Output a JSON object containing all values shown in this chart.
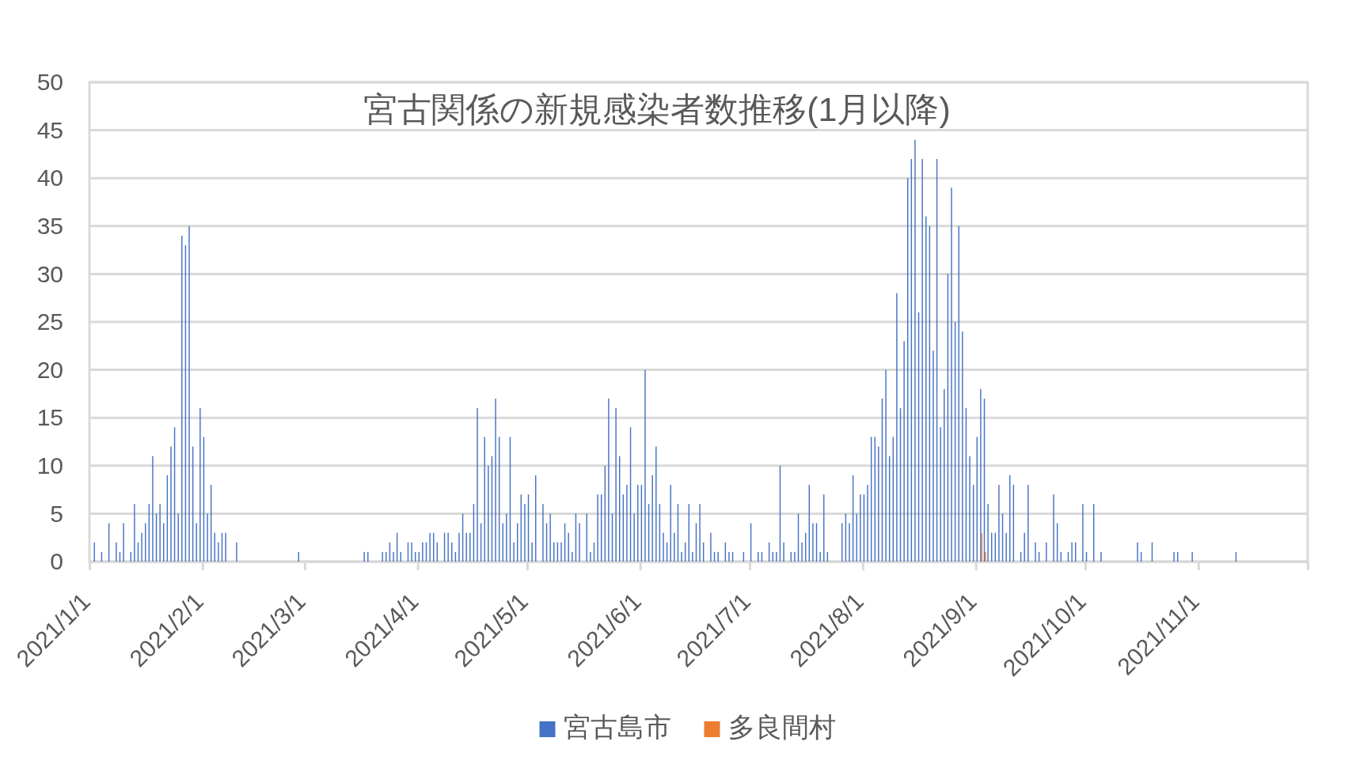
{
  "chart_data": {
    "type": "bar",
    "title": "宮古関係の新規感染者数推移(1月以降)",
    "xlim": [
      "2021-01-01",
      "2021-12-01"
    ],
    "xticks": [
      {
        "value": "2021-01-01",
        "label": "2021/1/1"
      },
      {
        "value": "2021-02-01",
        "label": "2021/2/1"
      },
      {
        "value": "2021-03-01",
        "label": "2021/3/1"
      },
      {
        "value": "2021-04-01",
        "label": "2021/4/1"
      },
      {
        "value": "2021-05-01",
        "label": "2021/5/1"
      },
      {
        "value": "2021-06-01",
        "label": "2021/6/1"
      },
      {
        "value": "2021-07-01",
        "label": "2021/7/1"
      },
      {
        "value": "2021-08-01",
        "label": "2021/8/1"
      },
      {
        "value": "2021-09-01",
        "label": "2021/9/1"
      },
      {
        "value": "2021-10-01",
        "label": "2021/10/1"
      },
      {
        "value": "2021-11-01",
        "label": "2021/11/1"
      },
      {
        "value": "2021-12-01",
        "label": null
      }
    ],
    "ylim": [
      0,
      50
    ],
    "yticks": [
      0,
      5,
      10,
      15,
      20,
      25,
      30,
      35,
      40,
      45,
      50
    ],
    "grid": "y",
    "legend": "bottom",
    "series": [
      {
        "name": "宮古島市",
        "color": "#4472c4",
        "x": [
          "2021-01-02",
          "2021-01-04",
          "2021-01-06",
          "2021-01-08",
          "2021-01-09",
          "2021-01-10",
          "2021-01-12",
          "2021-01-13",
          "2021-01-14",
          "2021-01-15",
          "2021-01-16",
          "2021-01-17",
          "2021-01-18",
          "2021-01-19",
          "2021-01-20",
          "2021-01-21",
          "2021-01-22",
          "2021-01-23",
          "2021-01-24",
          "2021-01-25",
          "2021-01-26",
          "2021-01-27",
          "2021-01-28",
          "2021-01-29",
          "2021-01-30",
          "2021-01-31",
          "2021-02-01",
          "2021-02-02",
          "2021-02-03",
          "2021-02-04",
          "2021-02-05",
          "2021-02-06",
          "2021-02-07",
          "2021-02-10",
          "2021-02-27",
          "2021-03-17",
          "2021-03-18",
          "2021-03-22",
          "2021-03-23",
          "2021-03-24",
          "2021-03-25",
          "2021-03-26",
          "2021-03-27",
          "2021-03-29",
          "2021-03-30",
          "2021-03-31",
          "2021-04-01",
          "2021-04-02",
          "2021-04-03",
          "2021-04-04",
          "2021-04-05",
          "2021-04-06",
          "2021-04-08",
          "2021-04-09",
          "2021-04-10",
          "2021-04-11",
          "2021-04-12",
          "2021-04-13",
          "2021-04-14",
          "2021-04-15",
          "2021-04-16",
          "2021-04-17",
          "2021-04-18",
          "2021-04-19",
          "2021-04-20",
          "2021-04-21",
          "2021-04-22",
          "2021-04-23",
          "2021-04-24",
          "2021-04-25",
          "2021-04-26",
          "2021-04-27",
          "2021-04-28",
          "2021-04-29",
          "2021-04-30",
          "2021-05-01",
          "2021-05-02",
          "2021-05-03",
          "2021-05-05",
          "2021-05-06",
          "2021-05-07",
          "2021-05-08",
          "2021-05-09",
          "2021-05-10",
          "2021-05-11",
          "2021-05-12",
          "2021-05-13",
          "2021-05-14",
          "2021-05-15",
          "2021-05-17",
          "2021-05-18",
          "2021-05-19",
          "2021-05-20",
          "2021-05-21",
          "2021-05-22",
          "2021-05-23",
          "2021-05-24",
          "2021-05-25",
          "2021-05-26",
          "2021-05-27",
          "2021-05-28",
          "2021-05-29",
          "2021-05-30",
          "2021-05-31",
          "2021-06-01",
          "2021-06-02",
          "2021-06-03",
          "2021-06-04",
          "2021-06-05",
          "2021-06-06",
          "2021-06-07",
          "2021-06-08",
          "2021-06-09",
          "2021-06-10",
          "2021-06-11",
          "2021-06-12",
          "2021-06-13",
          "2021-06-14",
          "2021-06-15",
          "2021-06-16",
          "2021-06-17",
          "2021-06-18",
          "2021-06-20",
          "2021-06-21",
          "2021-06-22",
          "2021-06-24",
          "2021-06-25",
          "2021-06-26",
          "2021-06-29",
          "2021-07-01",
          "2021-07-03",
          "2021-07-04",
          "2021-07-06",
          "2021-07-07",
          "2021-07-08",
          "2021-07-09",
          "2021-07-10",
          "2021-07-12",
          "2021-07-13",
          "2021-07-14",
          "2021-07-15",
          "2021-07-16",
          "2021-07-17",
          "2021-07-18",
          "2021-07-19",
          "2021-07-20",
          "2021-07-21",
          "2021-07-22",
          "2021-07-26",
          "2021-07-27",
          "2021-07-28",
          "2021-07-29",
          "2021-07-30",
          "2021-07-31",
          "2021-08-01",
          "2021-08-02",
          "2021-08-03",
          "2021-08-04",
          "2021-08-05",
          "2021-08-06",
          "2021-08-07",
          "2021-08-08",
          "2021-08-09",
          "2021-08-10",
          "2021-08-11",
          "2021-08-12",
          "2021-08-13",
          "2021-08-14",
          "2021-08-15",
          "2021-08-16",
          "2021-08-17",
          "2021-08-18",
          "2021-08-19",
          "2021-08-20",
          "2021-08-21",
          "2021-08-22",
          "2021-08-23",
          "2021-08-24",
          "2021-08-25",
          "2021-08-26",
          "2021-08-27",
          "2021-08-28",
          "2021-08-29",
          "2021-08-30",
          "2021-08-31",
          "2021-09-01",
          "2021-09-02",
          "2021-09-03",
          "2021-09-04",
          "2021-09-05",
          "2021-09-06",
          "2021-09-07",
          "2021-09-08",
          "2021-09-09",
          "2021-09-10",
          "2021-09-11",
          "2021-09-13",
          "2021-09-14",
          "2021-09-15",
          "2021-09-17",
          "2021-09-18",
          "2021-09-20",
          "2021-09-22",
          "2021-09-23",
          "2021-09-24",
          "2021-09-26",
          "2021-09-27",
          "2021-09-28",
          "2021-09-30",
          "2021-10-01",
          "2021-10-03",
          "2021-10-05",
          "2021-10-15",
          "2021-10-16",
          "2021-10-19",
          "2021-10-25",
          "2021-10-26",
          "2021-10-30",
          "2021-11-11"
        ],
        "values": [
          2,
          1,
          4,
          2,
          1,
          4,
          1,
          6,
          2,
          3,
          4,
          6,
          11,
          5,
          6,
          4,
          9,
          12,
          14,
          5,
          34,
          33,
          35,
          12,
          4,
          16,
          13,
          5,
          8,
          3,
          2,
          3,
          3,
          2,
          1,
          1,
          1,
          1,
          1,
          2,
          1,
          3,
          1,
          2,
          2,
          1,
          1,
          2,
          2,
          3,
          3,
          2,
          3,
          3,
          2,
          1,
          3,
          5,
          3,
          3,
          6,
          16,
          4,
          13,
          10,
          11,
          17,
          13,
          4,
          5,
          13,
          2,
          4,
          7,
          6,
          7,
          2,
          9,
          6,
          4,
          5,
          2,
          2,
          2,
          4,
          3,
          1,
          5,
          4,
          5,
          1,
          2,
          7,
          7,
          10,
          17,
          5,
          16,
          11,
          7,
          8,
          14,
          5,
          8,
          8,
          20,
          6,
          9,
          12,
          6,
          3,
          2,
          8,
          3,
          6,
          1,
          2,
          6,
          1,
          4,
          6,
          2,
          3,
          1,
          1,
          2,
          1,
          1,
          1,
          4,
          1,
          1,
          2,
          1,
          1,
          10,
          2,
          1,
          1,
          5,
          2,
          3,
          8,
          4,
          4,
          1,
          7,
          1,
          4,
          5,
          4,
          9,
          5,
          7,
          7,
          8,
          13,
          13,
          12,
          17,
          20,
          11,
          13,
          28,
          16,
          23,
          40,
          42,
          44,
          26,
          42,
          36,
          35,
          22,
          42,
          14,
          18,
          30,
          39,
          25,
          35,
          24,
          16,
          11,
          8,
          13,
          18,
          17,
          6,
          3,
          3,
          8,
          5,
          3,
          9,
          8,
          1,
          3,
          8,
          2,
          1,
          2,
          7,
          4,
          1,
          1,
          2,
          2,
          6,
          1,
          6,
          1,
          2,
          1,
          2,
          1,
          1,
          1,
          1
        ]
      },
      {
        "name": "多良間村",
        "color": "#ed7d31",
        "x": [
          "2021-09-02",
          "2021-09-03"
        ],
        "values": [
          3,
          1
        ]
      }
    ]
  }
}
